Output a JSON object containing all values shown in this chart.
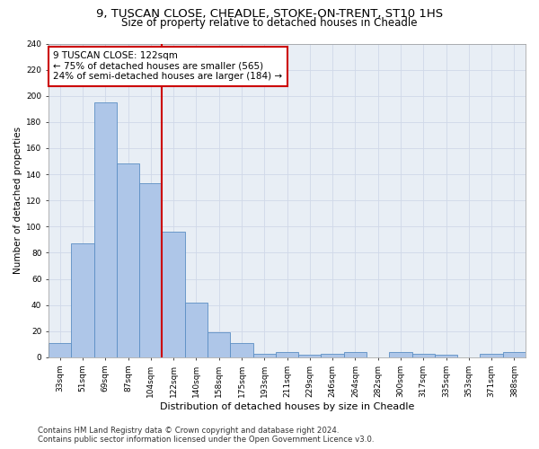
{
  "title_line1": "9, TUSCAN CLOSE, CHEADLE, STOKE-ON-TRENT, ST10 1HS",
  "title_line2": "Size of property relative to detached houses in Cheadle",
  "xlabel": "Distribution of detached houses by size in Cheadle",
  "ylabel": "Number of detached properties",
  "bar_labels": [
    "33sqm",
    "51sqm",
    "69sqm",
    "87sqm",
    "104sqm",
    "122sqm",
    "140sqm",
    "158sqm",
    "175sqm",
    "193sqm",
    "211sqm",
    "229sqm",
    "246sqm",
    "264sqm",
    "282sqm",
    "300sqm",
    "317sqm",
    "335sqm",
    "353sqm",
    "371sqm",
    "388sqm"
  ],
  "bar_values": [
    11,
    87,
    195,
    148,
    133,
    96,
    42,
    19,
    11,
    3,
    4,
    2,
    3,
    4,
    0,
    4,
    3,
    2,
    0,
    3,
    4
  ],
  "bar_color": "#aec6e8",
  "bar_edge_color": "#5b8ec4",
  "vline_x": 4.5,
  "vline_color": "#cc0000",
  "annotation_text": "9 TUSCAN CLOSE: 122sqm\n← 75% of detached houses are smaller (565)\n24% of semi-detached houses are larger (184) →",
  "annotation_box_color": "#ffffff",
  "annotation_box_edge": "#cc0000",
  "ylim": [
    0,
    240
  ],
  "yticks": [
    0,
    20,
    40,
    60,
    80,
    100,
    120,
    140,
    160,
    180,
    200,
    220,
    240
  ],
  "footer_line1": "Contains HM Land Registry data © Crown copyright and database right 2024.",
  "footer_line2": "Contains public sector information licensed under the Open Government Licence v3.0.",
  "bg_color": "#ffffff",
  "grid_color": "#d0d8e8",
  "title1_fontsize": 9.5,
  "title2_fontsize": 8.5,
  "xlabel_fontsize": 8,
  "ylabel_fontsize": 7.5,
  "tick_fontsize": 6.5,
  "annotation_fontsize": 7.5,
  "footer_fontsize": 6.2
}
